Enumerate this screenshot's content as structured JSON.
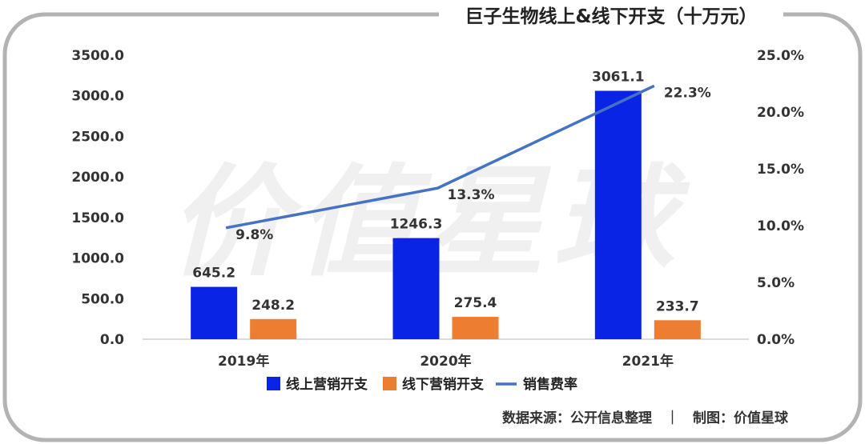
{
  "chart_data": {
    "type": "bar",
    "title": "巨子生物线上&线下开支（十万元）",
    "categories": [
      "2019年",
      "2020年",
      "2021年"
    ],
    "series": [
      {
        "name": "线上营销开支",
        "kind": "bar",
        "axis": "left",
        "color": "#0a24e6",
        "values": [
          645.2,
          1246.3,
          3061.1
        ],
        "labels": [
          "645.2",
          "1246.3",
          "3061.1"
        ]
      },
      {
        "name": "线下营销开支",
        "kind": "bar",
        "axis": "left",
        "color": "#ed7d31",
        "values": [
          248.2,
          275.4,
          233.7
        ],
        "labels": [
          "248.2",
          "275.4",
          "233.7"
        ]
      },
      {
        "name": "销售费率",
        "kind": "line",
        "axis": "right",
        "color": "#4472c4",
        "values": [
          9.8,
          13.3,
          22.3
        ],
        "labels": [
          "9.8%",
          "13.3%",
          "22.3%"
        ]
      }
    ],
    "y_left": {
      "ylim": [
        0,
        3500
      ],
      "ticks": [
        "0.0",
        "500.0",
        "1000.0",
        "1500.0",
        "2000.0",
        "2500.0",
        "3000.0",
        "3500.0"
      ]
    },
    "y_right": {
      "ylim": [
        0,
        25
      ],
      "ticks": [
        "0.0%",
        "5.0%",
        "10.0%",
        "15.0%",
        "20.0%",
        "25.0%"
      ]
    },
    "legend_position": "bottom",
    "grid": false
  },
  "watermark": "价值星球",
  "source_text": "数据来源：公开信息整理　｜　制图：价值星球",
  "colors": {
    "frame": "#b3b3b3",
    "background": "#ffffff"
  }
}
